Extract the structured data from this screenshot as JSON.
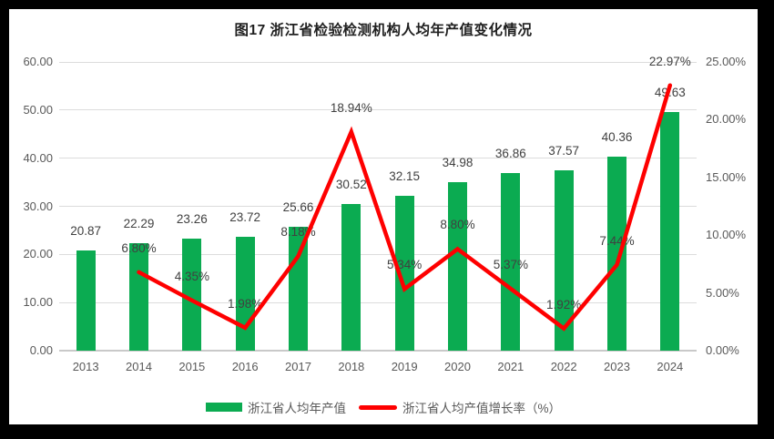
{
  "title": "图17  浙江省检验检测机构人均年产值变化情况",
  "colors": {
    "bar_green": "#0bab51",
    "line_red": "#fe0000",
    "gridline": "#dcdcdc",
    "axis_text": "#595959",
    "data_label_text": "#404040",
    "frame": "#000000",
    "background": "#ffffff"
  },
  "chart_data": {
    "type": "bar",
    "subtype": "bar+line combo, dual axis",
    "title": "图17  浙江省检验检测机构人均年产值变化情况",
    "categories": [
      "2013",
      "2014",
      "2015",
      "2016",
      "2017",
      "2018",
      "2019",
      "2020",
      "2021",
      "2022",
      "2023",
      "2024"
    ],
    "series": [
      {
        "name": "浙江省人均年产值",
        "type": "bar",
        "axis": "left",
        "color": "#0bab51",
        "values": [
          20.87,
          22.29,
          23.26,
          23.72,
          25.66,
          30.52,
          32.15,
          34.98,
          36.86,
          37.57,
          40.36,
          49.63
        ],
        "labels": [
          "20.87",
          "22.29",
          "23.26",
          "23.72",
          "25.66",
          "30.52",
          "32.15",
          "34.98",
          "36.86",
          "37.57",
          "40.36",
          "49.63"
        ]
      },
      {
        "name": "浙江省人均产值增长率（%）",
        "type": "line",
        "axis": "right",
        "color": "#fe0000",
        "values": [
          null,
          6.8,
          4.35,
          1.98,
          8.18,
          18.94,
          5.34,
          8.8,
          5.37,
          1.92,
          7.44,
          22.97
        ],
        "labels": [
          null,
          "6.80%",
          "4.35%",
          "1.98%",
          "8.18%",
          "18.94%",
          "5.34%",
          "8.80%",
          "5.37%",
          "1.92%",
          "7.44%",
          "22.97%"
        ]
      }
    ],
    "left_axis": {
      "min": 0,
      "max": 60,
      "ticks": [
        "60.00",
        "50.00",
        "40.00",
        "30.00",
        "20.00",
        "10.00",
        "0.00"
      ]
    },
    "right_axis": {
      "min": 0,
      "max": 25,
      "ticks": [
        "25.00%",
        "20.00%",
        "15.00%",
        "10.00%",
        "5.00%",
        "0.00%"
      ]
    },
    "grid": true,
    "legend_position": "bottom"
  },
  "legend": {
    "bar_label": "浙江省人均年产值",
    "line_label": "浙江省人均产值增长率（%）"
  }
}
